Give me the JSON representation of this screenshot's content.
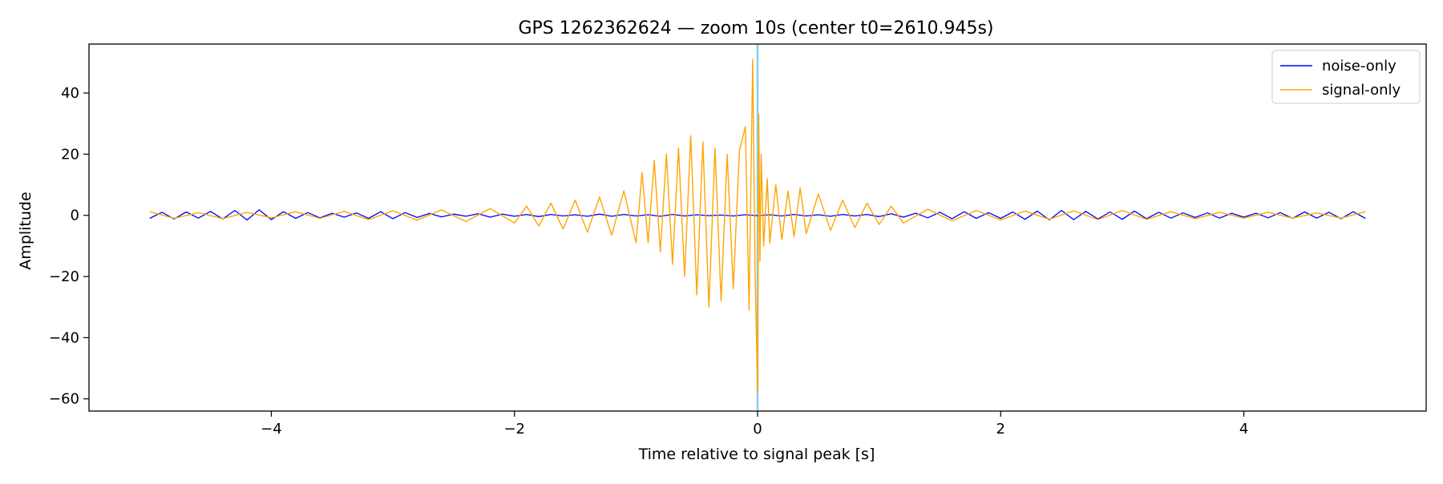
{
  "chart_data": {
    "type": "line",
    "title": "GPS 1262362624 — zoom 10s (center t0=2610.945s)",
    "xlabel": "Time relative to signal peak [s]",
    "ylabel": "Amplitude",
    "xlim": [
      -5.5,
      5.5
    ],
    "ylim": [
      -64,
      56
    ],
    "xticks": [
      -4,
      -2,
      0,
      2,
      4
    ],
    "xtick_labels": [
      "−4",
      "−2",
      "0",
      "2",
      "4"
    ],
    "yticks": [
      -60,
      -40,
      -20,
      0,
      20,
      40
    ],
    "ytick_labels": [
      "−60",
      "−40",
      "−20",
      "0",
      "20",
      "40"
    ],
    "grid": false,
    "legend_position": "top-right",
    "vline": {
      "x": 0,
      "color": "#87ceeb"
    },
    "series": [
      {
        "name": "noise-only",
        "color": "#0000ff",
        "x": [
          -5.0,
          -4.9,
          -4.8,
          -4.7,
          -4.6,
          -4.5,
          -4.4,
          -4.3,
          -4.2,
          -4.1,
          -4.0,
          -3.9,
          -3.8,
          -3.7,
          -3.6,
          -3.5,
          -3.4,
          -3.3,
          -3.2,
          -3.1,
          -3.0,
          -2.9,
          -2.8,
          -2.7,
          -2.6,
          -2.5,
          -2.4,
          -2.3,
          -2.2,
          -2.1,
          -2.0,
          -1.9,
          -1.8,
          -1.7,
          -1.6,
          -1.5,
          -1.4,
          -1.3,
          -1.2,
          -1.1,
          -1.0,
          -0.9,
          -0.8,
          -0.7,
          -0.6,
          -0.5,
          -0.4,
          -0.3,
          -0.2,
          -0.1,
          0.0,
          0.1,
          0.2,
          0.3,
          0.4,
          0.5,
          0.6,
          0.7,
          0.8,
          0.9,
          1.0,
          1.1,
          1.2,
          1.3,
          1.4,
          1.5,
          1.6,
          1.7,
          1.8,
          1.9,
          2.0,
          2.1,
          2.2,
          2.3,
          2.4,
          2.5,
          2.6,
          2.7,
          2.8,
          2.9,
          3.0,
          3.1,
          3.2,
          3.3,
          3.4,
          3.5,
          3.6,
          3.7,
          3.8,
          3.9,
          4.0,
          4.1,
          4.2,
          4.3,
          4.4,
          4.5,
          4.6,
          4.7,
          4.8,
          4.9,
          5.0
        ],
        "values": [
          -1.0,
          1.0,
          -1.2,
          1.1,
          -0.9,
          1.3,
          -1.2,
          1.6,
          -1.5,
          1.8,
          -1.4,
          1.2,
          -1.0,
          0.9,
          -0.8,
          0.7,
          -0.6,
          0.8,
          -1.0,
          1.2,
          -1.1,
          0.9,
          -0.7,
          0.6,
          -0.5,
          0.4,
          -0.3,
          0.5,
          -0.6,
          0.4,
          -0.3,
          0.3,
          -0.4,
          0.3,
          -0.2,
          0.2,
          -0.3,
          0.4,
          -0.3,
          0.3,
          -0.2,
          0.2,
          -0.3,
          0.3,
          -0.2,
          0.2,
          -0.1,
          0.1,
          -0.2,
          0.2,
          -0.1,
          0.2,
          -0.2,
          0.3,
          -0.2,
          0.2,
          -0.3,
          0.3,
          -0.2,
          0.3,
          -0.4,
          0.5,
          -0.6,
          0.7,
          -0.8,
          1.0,
          -1.1,
          1.2,
          -1.0,
          0.9,
          -1.0,
          1.1,
          -1.3,
          1.4,
          -1.5,
          1.6,
          -1.4,
          1.3,
          -1.2,
          1.1,
          -1.3,
          1.4,
          -1.1,
          1.0,
          -0.9,
          0.8,
          -0.7,
          0.8,
          -0.9,
          0.7,
          -0.6,
          0.7,
          -0.8,
          0.9,
          -1.0,
          1.1,
          -0.9,
          1.0,
          -1.1,
          1.2,
          -1.0
        ]
      },
      {
        "name": "signal-only",
        "color": "#ffa500",
        "x": [
          -5.0,
          -4.8,
          -4.6,
          -4.4,
          -4.2,
          -4.0,
          -3.8,
          -3.6,
          -3.4,
          -3.2,
          -3.0,
          -2.8,
          -2.6,
          -2.4,
          -2.2,
          -2.0,
          -1.9,
          -1.8,
          -1.7,
          -1.6,
          -1.5,
          -1.4,
          -1.3,
          -1.2,
          -1.1,
          -1.0,
          -0.95,
          -0.9,
          -0.85,
          -0.8,
          -0.75,
          -0.7,
          -0.65,
          -0.6,
          -0.55,
          -0.5,
          -0.45,
          -0.4,
          -0.35,
          -0.3,
          -0.25,
          -0.2,
          -0.15,
          -0.1,
          -0.07,
          -0.04,
          -0.02,
          0.0,
          0.01,
          0.02,
          0.03,
          0.05,
          0.08,
          0.1,
          0.15,
          0.2,
          0.25,
          0.3,
          0.35,
          0.4,
          0.5,
          0.6,
          0.7,
          0.8,
          0.9,
          1.0,
          1.1,
          1.2,
          1.4,
          1.6,
          1.8,
          2.0,
          2.2,
          2.4,
          2.6,
          2.8,
          3.0,
          3.2,
          3.4,
          3.6,
          3.8,
          4.0,
          4.2,
          4.4,
          4.6,
          4.8,
          5.0
        ],
        "values": [
          1.2,
          -1.0,
          0.9,
          -1.1,
          1.0,
          -0.8,
          1.2,
          -1.0,
          1.3,
          -1.4,
          1.5,
          -1.6,
          1.8,
          -2.0,
          2.2,
          -2.5,
          3.0,
          -3.5,
          4.0,
          -4.5,
          5.0,
          -5.5,
          6.0,
          -6.5,
          8.0,
          -9.0,
          14.0,
          -9.0,
          18.0,
          -12.0,
          20.0,
          -16.0,
          22.0,
          -20.0,
          26.0,
          -26.0,
          24.0,
          -30.0,
          22.0,
          -28.0,
          20.0,
          -24.0,
          21.0,
          29.0,
          -31.0,
          51.0,
          -20.0,
          -58.0,
          33.0,
          -15.0,
          20.0,
          -10.0,
          12.0,
          -9.0,
          10.0,
          -8.0,
          8.0,
          -7.0,
          9.0,
          -6.0,
          7.0,
          -5.0,
          5.0,
          -4.0,
          4.0,
          -3.0,
          3.0,
          -2.5,
          2.0,
          -1.8,
          1.6,
          -1.5,
          1.4,
          -1.3,
          1.5,
          -1.4,
          1.6,
          -1.3,
          1.2,
          -1.1,
          1.0,
          -0.9,
          1.0,
          -0.9,
          0.8,
          -0.9,
          1.2
        ]
      }
    ]
  }
}
